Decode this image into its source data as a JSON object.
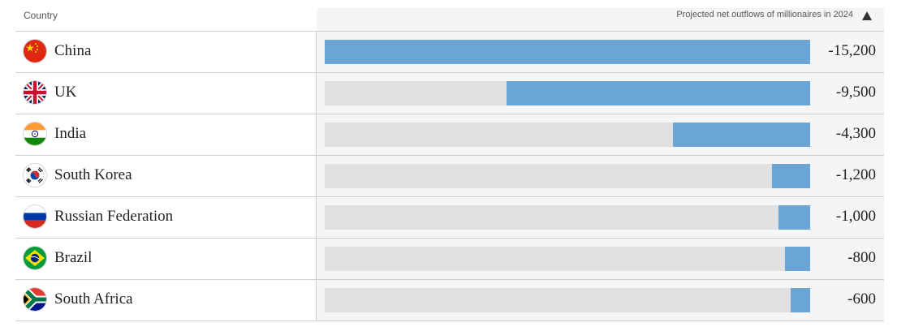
{
  "header": {
    "country_label": "Country",
    "metric_label": "Projected net outflows of millionaires in 2024"
  },
  "chart_data": {
    "type": "bar",
    "orientation": "horizontal",
    "categories": [
      "China",
      "UK",
      "India",
      "South Korea",
      "Russian Federation",
      "Brazil",
      "South Africa"
    ],
    "values": [
      -15200,
      -9500,
      -4300,
      -1200,
      -1000,
      -800,
      -600
    ],
    "value_labels": [
      "-15,200",
      "-9,500",
      "-4,300",
      "-1,200",
      "-1,000",
      "-800",
      "-600"
    ],
    "xlim": [
      -15200,
      0
    ],
    "series_color": "#6aa5d6",
    "track_color": "#dfe0e2",
    "sort": "ascending"
  },
  "flags": [
    {
      "icon": "china-flag-icon"
    },
    {
      "icon": "uk-flag-icon"
    },
    {
      "icon": "india-flag-icon"
    },
    {
      "icon": "south-korea-flag-icon"
    },
    {
      "icon": "russia-flag-icon"
    },
    {
      "icon": "brazil-flag-icon"
    },
    {
      "icon": "south-africa-flag-icon"
    }
  ]
}
